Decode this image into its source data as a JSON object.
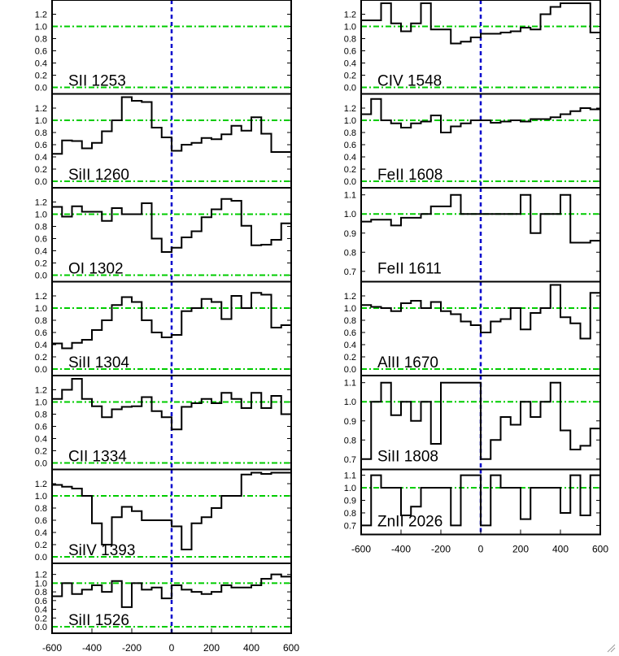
{
  "chart_data": [
    {
      "type": "line",
      "column": "left",
      "row": 0,
      "label": "SII 1253",
      "yticks": [
        "0.0",
        "0.2",
        "0.4",
        "0.6",
        "0.8",
        "1.0",
        "1.2"
      ],
      "ylim": [
        0.0,
        1.38
      ],
      "x": [],
      "values": []
    },
    {
      "type": "line",
      "column": "left",
      "row": 1,
      "label": "SiII 1260",
      "yticks": [
        "0.0",
        "0.2",
        "0.4",
        "0.6",
        "0.8",
        "1.0",
        "1.2"
      ],
      "ylim": [
        0.0,
        1.38
      ],
      "x": [
        -600,
        -550,
        -500,
        -450,
        -400,
        -350,
        -300,
        -250,
        -200,
        -150,
        -100,
        -50,
        0,
        50,
        100,
        150,
        200,
        250,
        300,
        350,
        400,
        450,
        500,
        550
      ],
      "values": [
        0.45,
        0.67,
        0.66,
        0.54,
        0.63,
        0.82,
        1.0,
        1.38,
        1.32,
        1.3,
        0.88,
        0.72,
        0.5,
        0.6,
        0.63,
        0.71,
        0.69,
        0.77,
        0.91,
        0.83,
        1.05,
        0.78,
        0.48,
        0.48
      ]
    },
    {
      "type": "line",
      "column": "left",
      "row": 2,
      "label": "OI 1302",
      "yticks": [
        "0.0",
        "0.2",
        "0.4",
        "0.6",
        "0.8",
        "1.0",
        "1.2"
      ],
      "ylim": [
        0.0,
        1.38
      ],
      "x": [
        -600,
        -550,
        -500,
        -450,
        -400,
        -350,
        -300,
        -250,
        -200,
        -150,
        -100,
        -50,
        0,
        50,
        100,
        150,
        200,
        250,
        300,
        350,
        400,
        450,
        500,
        550
      ],
      "values": [
        1.12,
        0.96,
        1.13,
        1.04,
        1.04,
        0.89,
        1.1,
        1.0,
        1.0,
        1.18,
        0.6,
        0.38,
        0.45,
        0.62,
        0.72,
        0.95,
        1.08,
        1.25,
        1.22,
        0.81,
        0.49,
        0.5,
        0.58,
        0.85
      ]
    },
    {
      "type": "line",
      "column": "left",
      "row": 3,
      "label": "SiII 1304",
      "yticks": [
        "0.0",
        "0.2",
        "0.4",
        "0.6",
        "0.8",
        "1.0",
        "1.2"
      ],
      "ylim": [
        0.0,
        1.38
      ],
      "x": [
        -600,
        -550,
        -500,
        -450,
        -400,
        -350,
        -300,
        -250,
        -200,
        -150,
        -100,
        -50,
        0,
        50,
        100,
        150,
        200,
        250,
        300,
        350,
        400,
        450,
        500,
        550
      ],
      "values": [
        0.42,
        0.34,
        0.43,
        0.48,
        0.64,
        0.8,
        1.05,
        1.18,
        1.1,
        0.8,
        0.6,
        0.52,
        0.56,
        0.95,
        1.0,
        1.15,
        1.1,
        0.82,
        1.2,
        1.0,
        1.25,
        1.22,
        0.68,
        0.72
      ]
    },
    {
      "type": "line",
      "column": "left",
      "row": 4,
      "label": "CII 1334",
      "yticks": [
        "0.0",
        "0.2",
        "0.4",
        "0.6",
        "0.8",
        "1.0",
        "1.2"
      ],
      "ylim": [
        0.0,
        1.38
      ],
      "x": [
        -600,
        -550,
        -500,
        -450,
        -400,
        -350,
        -300,
        -250,
        -200,
        -150,
        -100,
        -50,
        0,
        50,
        100,
        150,
        200,
        250,
        300,
        350,
        400,
        450,
        500,
        550
      ],
      "values": [
        1.05,
        1.2,
        1.38,
        1.05,
        0.93,
        0.75,
        0.88,
        0.92,
        0.93,
        1.08,
        0.85,
        0.75,
        0.55,
        0.92,
        0.98,
        1.05,
        0.98,
        1.15,
        1.05,
        0.9,
        1.15,
        0.9,
        1.1,
        0.8
      ]
    },
    {
      "type": "line",
      "column": "left",
      "row": 5,
      "label": "SiIV 1393",
      "yticks": [
        "0.0",
        "0.2",
        "0.4",
        "0.6",
        "0.8",
        "1.0",
        "1.2"
      ],
      "ylim": [
        0.0,
        1.38
      ],
      "x": [
        -600,
        -550,
        -500,
        -450,
        -400,
        -350,
        -300,
        -250,
        -200,
        -150,
        -100,
        -50,
        0,
        50,
        100,
        150,
        200,
        250,
        300,
        350,
        400,
        450,
        500,
        550
      ],
      "values": [
        1.18,
        1.15,
        1.12,
        1.0,
        0.55,
        0.2,
        0.65,
        0.82,
        0.75,
        0.6,
        0.6,
        0.6,
        0.5,
        0.12,
        0.55,
        0.65,
        0.8,
        1.0,
        1.0,
        1.35,
        1.38,
        1.36,
        1.38,
        1.38
      ]
    },
    {
      "type": "line",
      "column": "left",
      "row": 6,
      "label": "SiII 1526",
      "yticks": [
        "0.0",
        "0.2",
        "0.4",
        "0.6",
        "0.8",
        "1.0",
        "1.2"
      ],
      "ylim": [
        0.0,
        1.38
      ],
      "x": [
        -600,
        -550,
        -500,
        -450,
        -400,
        -350,
        -300,
        -250,
        -200,
        -150,
        -100,
        -50,
        0,
        50,
        100,
        150,
        200,
        250,
        300,
        350,
        400,
        450,
        500,
        550
      ],
      "values": [
        0.7,
        1.0,
        0.75,
        0.85,
        0.95,
        0.8,
        1.05,
        0.45,
        1.0,
        0.85,
        0.9,
        0.65,
        0.95,
        0.85,
        0.8,
        0.75,
        0.8,
        0.95,
        0.9,
        0.9,
        0.95,
        1.1,
        1.2,
        1.15
      ]
    },
    {
      "type": "line",
      "column": "right",
      "row": 0,
      "label": "CIV 1548",
      "yticks": [
        "0.0",
        "0.2",
        "0.4",
        "0.6",
        "0.8",
        "1.0",
        "1.2"
      ],
      "ylim": [
        0.0,
        1.38
      ],
      "x": [
        -600,
        -550,
        -500,
        -450,
        -400,
        -350,
        -300,
        -250,
        -200,
        -150,
        -100,
        -50,
        0,
        50,
        100,
        150,
        200,
        250,
        300,
        350,
        400,
        450,
        500,
        550
      ],
      "values": [
        1.1,
        1.1,
        1.38,
        1.05,
        0.92,
        1.05,
        1.38,
        0.95,
        0.95,
        0.72,
        0.75,
        0.82,
        0.88,
        0.88,
        0.9,
        0.92,
        0.98,
        0.95,
        1.2,
        1.32,
        1.38,
        1.38,
        1.38,
        0.9
      ]
    },
    {
      "type": "line",
      "column": "right",
      "row": 1,
      "label": "FeII 1608",
      "yticks": [
        "0.0",
        "0.2",
        "0.4",
        "0.6",
        "0.8",
        "1.0",
        "1.2"
      ],
      "ylim": [
        0.0,
        1.38
      ],
      "x": [
        -600,
        -550,
        -500,
        -450,
        -400,
        -350,
        -300,
        -250,
        -200,
        -150,
        -100,
        -50,
        0,
        50,
        100,
        150,
        200,
        250,
        300,
        350,
        400,
        450,
        500,
        550
      ],
      "values": [
        1.1,
        1.35,
        1.0,
        0.95,
        0.88,
        0.95,
        0.98,
        1.08,
        0.8,
        0.9,
        0.95,
        1.0,
        1.0,
        0.96,
        0.98,
        1.0,
        0.98,
        1.02,
        1.02,
        1.05,
        1.1,
        1.15,
        1.2,
        1.18
      ]
    },
    {
      "type": "line",
      "column": "right",
      "row": 2,
      "label": "FeII 1611",
      "yticks": [
        "0.7",
        "0.8",
        "0.9",
        "1.0",
        "1.1"
      ],
      "ylim": [
        0.68,
        1.12
      ],
      "x": [
        -600,
        -550,
        -500,
        -450,
        -400,
        -350,
        -300,
        -250,
        -200,
        -150,
        -100,
        -50,
        0,
        50,
        100,
        150,
        200,
        250,
        300,
        350,
        400,
        450,
        500,
        550
      ],
      "values": [
        0.96,
        0.97,
        0.97,
        0.94,
        0.98,
        0.98,
        1.0,
        1.04,
        1.04,
        1.1,
        1.0,
        1.0,
        1.0,
        1.0,
        1.0,
        1.0,
        1.1,
        0.9,
        1.0,
        1.0,
        1.1,
        0.85,
        0.85,
        0.86
      ]
    },
    {
      "type": "line",
      "column": "right",
      "row": 3,
      "label": "AlII 1670",
      "yticks": [
        "0.0",
        "0.2",
        "0.4",
        "0.6",
        "0.8",
        "1.0",
        "1.2"
      ],
      "ylim": [
        0.0,
        1.38
      ],
      "x": [
        -600,
        -550,
        -500,
        -450,
        -400,
        -350,
        -300,
        -250,
        -200,
        -150,
        -100,
        -50,
        0,
        50,
        100,
        150,
        200,
        250,
        300,
        350,
        400,
        450,
        500,
        550
      ],
      "values": [
        1.05,
        1.02,
        1.0,
        0.95,
        1.08,
        1.12,
        1.0,
        1.1,
        0.95,
        0.9,
        0.78,
        0.72,
        0.6,
        0.78,
        0.82,
        1.0,
        0.65,
        0.92,
        1.0,
        1.38,
        0.85,
        0.75,
        0.5,
        1.25
      ]
    },
    {
      "type": "line",
      "column": "right",
      "row": 4,
      "label": "SiII 1808",
      "yticks": [
        "0.7",
        "0.8",
        "0.9",
        "1.0",
        "1.1"
      ],
      "ylim": [
        0.68,
        1.12
      ],
      "x": [
        -600,
        -550,
        -500,
        -450,
        -400,
        -350,
        -300,
        -250,
        -200,
        -150,
        -100,
        -50,
        0,
        50,
        100,
        150,
        200,
        250,
        300,
        350,
        400,
        450,
        500,
        550
      ],
      "values": [
        0.7,
        1.0,
        1.1,
        0.93,
        1.0,
        0.9,
        1.0,
        0.78,
        1.1,
        1.1,
        1.1,
        1.1,
        0.7,
        0.8,
        0.92,
        0.88,
        1.0,
        0.92,
        1.0,
        1.1,
        0.85,
        0.75,
        0.77,
        0.86
      ]
    },
    {
      "type": "line",
      "column": "right",
      "row": 5,
      "label": "ZnII 2026",
      "yticks": [
        "0.7",
        "0.8",
        "0.9",
        "1.0",
        "1.1"
      ],
      "ylim": [
        0.68,
        1.12
      ],
      "x": [
        -600,
        -550,
        -500,
        -450,
        -400,
        -350,
        -300,
        -250,
        -200,
        -150,
        -100,
        -50,
        0,
        50,
        100,
        150,
        200,
        250,
        300,
        350,
        400,
        450,
        500,
        550
      ],
      "values": [
        0.7,
        1.1,
        1.0,
        1.0,
        0.78,
        0.85,
        1.0,
        1.0,
        1.0,
        0.7,
        1.1,
        1.1,
        0.7,
        1.1,
        1.0,
        1.0,
        0.75,
        1.0,
        1.0,
        1.0,
        0.8,
        1.1,
        0.78,
        1.1
      ]
    }
  ],
  "x_axis": {
    "range": [
      -600,
      600
    ],
    "tick_labels": [
      "-600",
      "-400",
      "-200",
      "0",
      "200",
      "400",
      "600"
    ]
  },
  "colors": {
    "data": "#000000",
    "continuum": "#00cc00",
    "zero_velocity": "#0000cc",
    "frame": "#000000"
  }
}
